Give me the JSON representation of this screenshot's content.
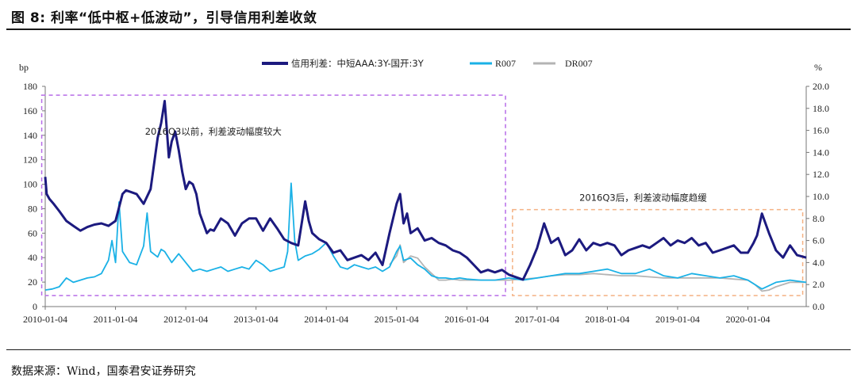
{
  "header": {
    "title": "图 8:  利率“低中枢+低波动”，引导信用利差收敛"
  },
  "footer": {
    "source": "数据来源：Wind，国泰君安证券研究"
  },
  "chart_data": {
    "type": "line",
    "left_unit": "bp",
    "right_unit": "%",
    "left_ylim": [
      0,
      180
    ],
    "right_ylim": [
      0,
      20
    ],
    "left_ticks": [
      "0",
      "20",
      "40",
      "60",
      "80",
      "100",
      "120",
      "140",
      "160",
      "180"
    ],
    "right_ticks": [
      "0.0",
      "2.0",
      "4.0",
      "6.0",
      "8.0",
      "10.0",
      "12.0",
      "14.0",
      "16.0",
      "18.0",
      "20.0"
    ],
    "x_range": [
      2010.0,
      2020.83
    ],
    "x_ticks": [
      "2010-01-04",
      "2011-01-04",
      "2012-01-04",
      "2013-01-04",
      "2014-01-04",
      "2015-01-04",
      "2016-01-04",
      "2017-01-04",
      "2018-01-04",
      "2019-01-04",
      "2020-01-04"
    ],
    "series": [
      {
        "name": "信用利差：中短AAA:3Y-国开:3Y",
        "axis": "left",
        "color": "#1c1a7f",
        "x": [
          2010.0,
          2010.02,
          2010.06,
          2010.12,
          2010.2,
          2010.3,
          2010.4,
          2010.5,
          2010.6,
          2010.7,
          2010.8,
          2010.9,
          2011.0,
          2011.1,
          2011.15,
          2011.2,
          2011.3,
          2011.4,
          2011.5,
          2011.6,
          2011.65,
          2011.7,
          2011.73,
          2011.76,
          2011.8,
          2011.85,
          2011.9,
          2011.95,
          2012.0,
          2012.05,
          2012.1,
          2012.15,
          2012.2,
          2012.3,
          2012.35,
          2012.4,
          2012.5,
          2012.6,
          2012.7,
          2012.8,
          2012.9,
          2013.0,
          2013.1,
          2013.2,
          2013.3,
          2013.4,
          2013.5,
          2013.6,
          2013.7,
          2013.75,
          2013.8,
          2013.9,
          2014.0,
          2014.1,
          2014.2,
          2014.3,
          2014.4,
          2014.5,
          2014.6,
          2014.7,
          2014.8,
          2014.9,
          2015.0,
          2015.05,
          2015.1,
          2015.15,
          2015.2,
          2015.3,
          2015.4,
          2015.5,
          2015.6,
          2015.7,
          2015.8,
          2015.9,
          2016.0,
          2016.1,
          2016.2,
          2016.3,
          2016.4,
          2016.5,
          2016.6,
          2016.7,
          2016.8,
          2016.9,
          2017.0,
          2017.1,
          2017.15,
          2017.2,
          2017.3,
          2017.4,
          2017.5,
          2017.6,
          2017.7,
          2017.8,
          2017.9,
          2018.0,
          2018.1,
          2018.2,
          2018.3,
          2018.4,
          2018.5,
          2018.6,
          2018.7,
          2018.8,
          2018.9,
          2019.0,
          2019.1,
          2019.2,
          2019.3,
          2019.4,
          2019.5,
          2019.6,
          2019.7,
          2019.8,
          2019.9,
          2020.0,
          2020.08,
          2020.13,
          2020.2,
          2020.3,
          2020.4,
          2020.5,
          2020.6,
          2020.7,
          2020.83
        ],
        "values": [
          106,
          92,
          88,
          84,
          78,
          70,
          66,
          62,
          65,
          67,
          68,
          66,
          70,
          92,
          95,
          94,
          92,
          84,
          96,
          138,
          150,
          168,
          145,
          122,
          135,
          143,
          128,
          110,
          96,
          102,
          100,
          92,
          76,
          60,
          63,
          62,
          72,
          68,
          58,
          68,
          72,
          72,
          62,
          72,
          64,
          55,
          52,
          50,
          86,
          70,
          60,
          55,
          52,
          44,
          46,
          38,
          40,
          42,
          38,
          44,
          34,
          60,
          84,
          92,
          68,
          76,
          60,
          64,
          54,
          56,
          52,
          50,
          46,
          44,
          40,
          34,
          28,
          30,
          28,
          30,
          26,
          24,
          22,
          34,
          48,
          68,
          60,
          52,
          56,
          42,
          46,
          55,
          46,
          52,
          50,
          52,
          50,
          42,
          46,
          48,
          50,
          48,
          52,
          56,
          50,
          54,
          52,
          56,
          50,
          52,
          44,
          46,
          48,
          50,
          44,
          44,
          52,
          58,
          76,
          60,
          46,
          40,
          50,
          42,
          40
        ]
      },
      {
        "name": "R007",
        "axis": "right",
        "color": "#1ab1e6",
        "x": [
          2010.0,
          2010.1,
          2010.2,
          2010.3,
          2010.4,
          2010.5,
          2010.6,
          2010.7,
          2010.8,
          2010.9,
          2010.95,
          2011.0,
          2011.05,
          2011.1,
          2011.2,
          2011.3,
          2011.4,
          2011.45,
          2011.5,
          2011.6,
          2011.65,
          2011.7,
          2011.8,
          2011.9,
          2012.0,
          2012.1,
          2012.2,
          2012.3,
          2012.4,
          2012.5,
          2012.6,
          2012.7,
          2012.8,
          2012.9,
          2013.0,
          2013.1,
          2013.2,
          2013.3,
          2013.4,
          2013.45,
          2013.5,
          2013.55,
          2013.6,
          2013.7,
          2013.8,
          2013.9,
          2014.0,
          2014.05,
          2014.1,
          2014.2,
          2014.3,
          2014.4,
          2014.5,
          2014.6,
          2014.7,
          2014.8,
          2014.9,
          2015.0,
          2015.05,
          2015.1,
          2015.2,
          2015.3,
          2015.4,
          2015.5,
          2015.6,
          2015.7,
          2015.8,
          2015.9,
          2016.0,
          2016.2,
          2016.4,
          2016.6,
          2016.8,
          2017.0,
          2017.2,
          2017.4,
          2017.6,
          2017.8,
          2018.0,
          2018.2,
          2018.4,
          2018.6,
          2018.8,
          2019.0,
          2019.2,
          2019.4,
          2019.6,
          2019.8,
          2020.0,
          2020.2,
          2020.4,
          2020.6,
          2020.83
        ],
        "values": [
          1.5,
          1.6,
          1.8,
          2.6,
          2.2,
          2.4,
          2.6,
          2.7,
          3.0,
          4.2,
          6.0,
          4.0,
          9.5,
          5.0,
          4.0,
          3.8,
          5.5,
          8.5,
          5.0,
          4.5,
          5.2,
          5.0,
          4.0,
          4.8,
          4.0,
          3.2,
          3.4,
          3.2,
          3.4,
          3.6,
          3.2,
          3.4,
          3.6,
          3.4,
          4.2,
          3.8,
          3.2,
          3.4,
          3.6,
          5.0,
          11.2,
          6.0,
          4.2,
          4.6,
          4.8,
          5.2,
          5.8,
          5.2,
          4.6,
          3.6,
          3.4,
          3.8,
          3.6,
          3.4,
          3.6,
          3.2,
          3.6,
          5.0,
          5.5,
          4.2,
          4.4,
          3.8,
          3.4,
          2.8,
          2.6,
          2.6,
          2.5,
          2.6,
          2.5,
          2.4,
          2.4,
          2.6,
          2.4,
          2.6,
          2.8,
          3.0,
          3.0,
          3.2,
          3.4,
          3.0,
          3.0,
          3.4,
          2.8,
          2.6,
          3.0,
          2.8,
          2.6,
          2.8,
          2.4,
          1.6,
          2.2,
          2.4,
          2.2
        ]
      },
      {
        "name": "DR007",
        "axis": "right",
        "color": "#b4b4b4",
        "x": [
          2014.9,
          2015.0,
          2015.05,
          2015.1,
          2015.2,
          2015.3,
          2015.4,
          2015.5,
          2015.6,
          2015.7,
          2015.8,
          2015.9,
          2016.0,
          2016.2,
          2016.4,
          2016.6,
          2016.8,
          2017.0,
          2017.2,
          2017.4,
          2017.6,
          2017.8,
          2018.0,
          2018.2,
          2018.4,
          2018.6,
          2018.8,
          2019.0,
          2019.2,
          2019.4,
          2019.6,
          2019.8,
          2020.0,
          2020.1,
          2020.2,
          2020.3,
          2020.4,
          2020.6,
          2020.83
        ],
        "values": [
          3.8,
          4.6,
          5.6,
          4.0,
          4.6,
          4.4,
          3.6,
          3.0,
          2.4,
          2.4,
          2.5,
          2.4,
          2.4,
          2.4,
          2.4,
          2.4,
          2.5,
          2.6,
          2.8,
          2.9,
          2.9,
          3.0,
          2.9,
          2.8,
          2.8,
          2.7,
          2.6,
          2.6,
          2.6,
          2.6,
          2.6,
          2.5,
          2.4,
          2.0,
          1.4,
          1.5,
          1.8,
          2.2,
          2.2
        ]
      }
    ],
    "annotations": [
      {
        "text": "2016Q3以前，利差波动幅度较大",
        "box_x": [
          2009.95,
          2016.55
        ],
        "box_y": [
          1.0,
          19.2
        ],
        "color": "#b76ce8"
      },
      {
        "text": "2016Q3后，利差波动幅度趋缓",
        "box_x": [
          2016.65,
          2020.78
        ],
        "box_y": [
          1.0,
          8.8
        ],
        "color": "#f4b183"
      }
    ],
    "legend_placement": "top-center"
  }
}
